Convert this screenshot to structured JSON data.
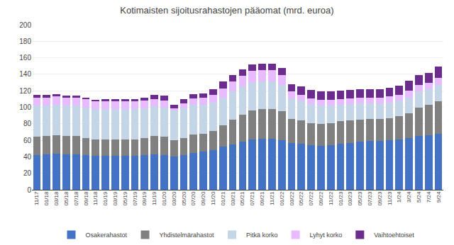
{
  "chart_data": {
    "type": "bar",
    "stacked": true,
    "title": "Kotimaisten sijoitusrahastojen pääomat (mrd. euroa)",
    "categories": [
      "11/17",
      "01/18",
      "03/18",
      "05/18",
      "07/18",
      "09/18",
      "11/18",
      "01/19",
      "03/19",
      "05/19",
      "07/19",
      "09/19",
      "11/19",
      "01/20",
      "03/20",
      "05/20",
      "07/20",
      "09/20",
      "11/20",
      "01/21",
      "03/21",
      "05/21",
      "07/21",
      "09/21",
      "11/21",
      "01/22",
      "03/22",
      "05/22",
      "07/22",
      "09/22",
      "11/22",
      "01/23",
      "03/23",
      "05/23",
      "07/23",
      "09/23",
      "11/23",
      "1/24",
      "3/24",
      "5/24",
      "7/24",
      "9/24"
    ],
    "series": [
      {
        "name": "Osakerahastot",
        "color": "#4472C4",
        "values": [
          42,
          43,
          44,
          43,
          43,
          42,
          41,
          41,
          41,
          41,
          41,
          42,
          43,
          42,
          40,
          42,
          45,
          46,
          48,
          52,
          55,
          58,
          61,
          62,
          62,
          60,
          57,
          56,
          54,
          53,
          54,
          56,
          57,
          58,
          59,
          59,
          60,
          61,
          63,
          65,
          66,
          68
        ]
      },
      {
        "name": "Yhdistelmärahastot",
        "color": "#808080",
        "values": [
          22,
          22,
          22,
          22,
          22,
          21,
          20,
          20,
          20,
          20,
          20,
          21,
          22,
          22,
          20,
          21,
          22,
          22,
          23,
          26,
          30,
          33,
          35,
          36,
          36,
          35,
          29,
          28,
          27,
          27,
          27,
          27,
          27,
          27,
          27,
          27,
          27,
          28,
          30,
          35,
          37,
          39
        ]
      },
      {
        "name": "Pitkä korko",
        "color": "#C5D5E8",
        "values": [
          38,
          37,
          37,
          37,
          37,
          37,
          37,
          37,
          37,
          37,
          37,
          36,
          36,
          36,
          36,
          36,
          36,
          35,
          35,
          34,
          34,
          34,
          34,
          33,
          33,
          32,
          25,
          24,
          23,
          22,
          21,
          20,
          20,
          20,
          19,
          19,
          19,
          19,
          19,
          19,
          19,
          20
        ]
      },
      {
        "name": "Lyhyt korko",
        "color": "#E8BAFF",
        "values": [
          10,
          10,
          10,
          10,
          10,
          10,
          9,
          9,
          9,
          9,
          9,
          9,
          9,
          8,
          3,
          6,
          8,
          9,
          9,
          11,
          12,
          13,
          14,
          14,
          14,
          12,
          8,
          7,
          7,
          7,
          7,
          7,
          7,
          7,
          7,
          7,
          7,
          7,
          8,
          8,
          8,
          9
        ]
      },
      {
        "name": "Vaihtoehtoiset",
        "color": "#6B2C8E",
        "values": [
          3,
          3,
          3,
          2,
          2,
          2,
          2,
          3,
          3,
          3,
          3,
          4,
          5,
          6,
          4,
          5,
          5,
          5,
          7,
          8,
          8,
          8,
          8,
          8,
          8,
          9,
          9,
          10,
          10,
          10,
          10,
          10,
          10,
          10,
          10,
          10,
          11,
          11,
          12,
          12,
          12,
          13
        ]
      }
    ],
    "ylim": [
      0,
      200
    ],
    "yticks": [
      0,
      20,
      40,
      60,
      80,
      100,
      120,
      140,
      160,
      180,
      200
    ],
    "grid": true,
    "legend": "bottom"
  }
}
